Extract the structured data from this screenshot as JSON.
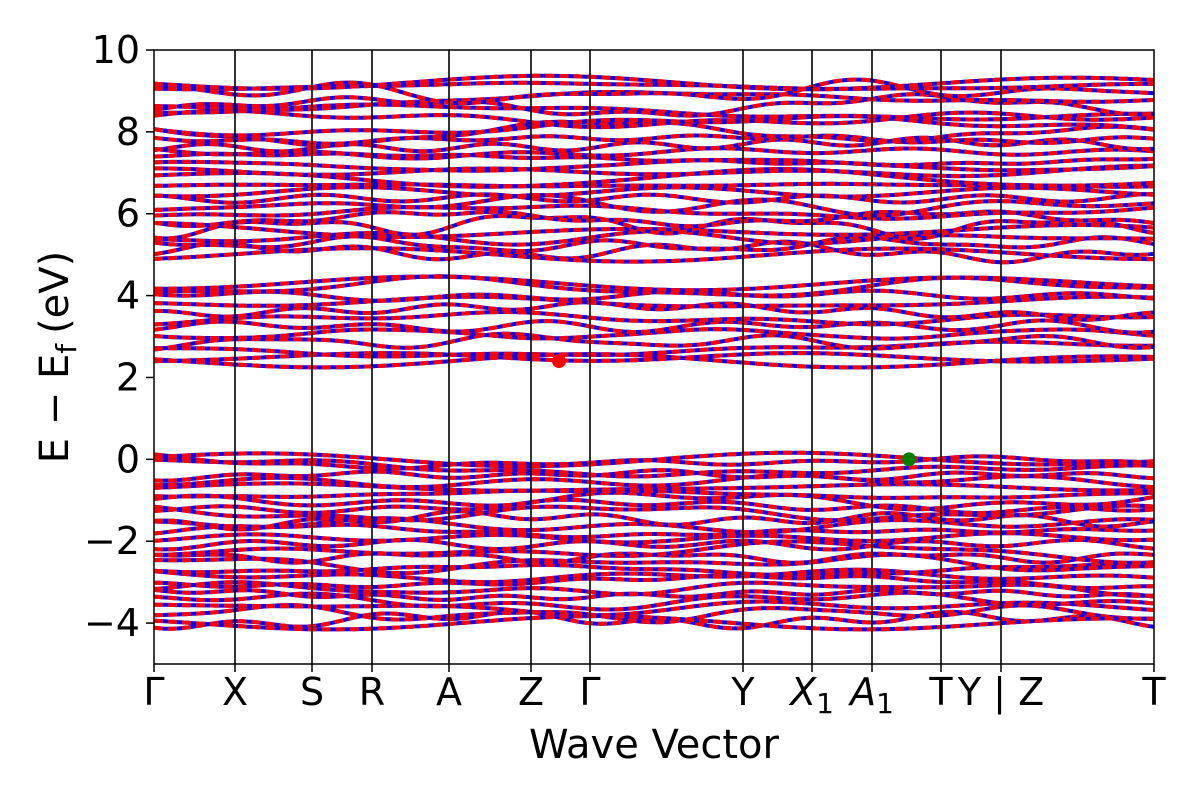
{
  "chart_data": {
    "type": "line",
    "title": "",
    "xlabel": "Wave Vector",
    "ylabel": "E − E",
    "ylabel_sub": "f",
    "ylabel_unit": "(eV)",
    "ylim": [
      -5,
      10
    ],
    "y_ticks": [
      -4,
      -2,
      0,
      2,
      4,
      6,
      8,
      10
    ],
    "y_tick_labels": [
      "−4",
      "−2",
      "0",
      "2",
      "4",
      "6",
      "8",
      "10"
    ],
    "k_path": [
      {
        "label": "Γ",
        "k": 0.0
      },
      {
        "label": "X",
        "k": 0.081
      },
      {
        "label": "S",
        "k": 0.158
      },
      {
        "label": "R",
        "k": 0.218
      },
      {
        "label": "A",
        "k": 0.295
      },
      {
        "label": "Z",
        "k": 0.377
      },
      {
        "label": "Γ",
        "k": 0.436
      },
      {
        "label": "Y",
        "k": 0.589
      },
      {
        "label": "X",
        "sub": "1",
        "k": 0.658
      },
      {
        "label": "A",
        "sub": "1",
        "k": 0.718
      },
      {
        "label": "T",
        "k": 0.787
      },
      {
        "label": "Y | Z",
        "k": 0.847
      },
      {
        "label": "T",
        "k": 1.0
      }
    ],
    "band_groups": [
      {
        "name": "valence",
        "emin": -4.0,
        "emax": 0.0
      },
      {
        "name": "conduction-low",
        "emin": 2.4,
        "emax": 4.3
      },
      {
        "name": "conduction-high",
        "emin": 5.0,
        "emax": 9.2
      }
    ],
    "series": [
      {
        "color": "#0000ff",
        "style": "solid"
      },
      {
        "color": "#ff0000",
        "style": "dashed"
      }
    ],
    "markers": [
      {
        "k": 0.405,
        "e": 2.4,
        "color": "#ff0000",
        "meaning": "CBM"
      },
      {
        "k": 0.755,
        "e": 0.0,
        "color": "#008000",
        "meaning": "VBM"
      }
    ]
  }
}
